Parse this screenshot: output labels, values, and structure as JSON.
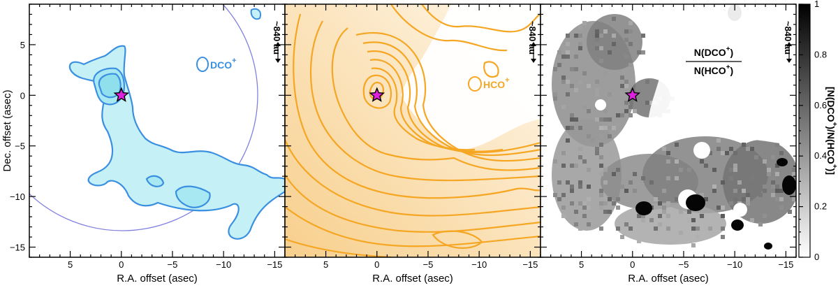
{
  "chart_data": [
    {
      "type": "contour",
      "panel": "left",
      "line_label": "DCO",
      "line_sup": "+",
      "xlabel": "R.A. offset (asec)",
      "ylabel": "Dec. offset (asec)",
      "xlim": [
        9,
        -16
      ],
      "ylim": [
        -16,
        9
      ],
      "x_ticks": [
        5,
        0,
        -5,
        -10,
        -15
      ],
      "y_ticks": [
        5,
        0,
        -5,
        -10,
        -15
      ],
      "scale_bar_label": "~840 au",
      "star_position": [
        0,
        0
      ],
      "colors": {
        "contour": "#3b8fe0",
        "fill": "#c4f0f6",
        "fill_dark": "#90e2ee",
        "beam_circle": "#8080e0",
        "star": "#dd22dd"
      }
    },
    {
      "type": "contour",
      "panel": "middle",
      "line_label": "HCO",
      "line_sup": "+",
      "xlabel": "R.A. offset (asec)",
      "xlim": [
        9,
        -16
      ],
      "ylim": [
        -16,
        9
      ],
      "x_ticks": [
        5,
        0,
        -5,
        -10,
        -15
      ],
      "scale_bar_label": "~840 au",
      "star_position": [
        0,
        0
      ],
      "colors": {
        "contour": "#f5a623",
        "fill": "#fbe3bd"
      }
    },
    {
      "type": "heatmap",
      "panel": "right",
      "ratio_num": "N(DCO",
      "ratio_den": "N(HCO",
      "ratio_sup": "+",
      "xlabel": "R.A. offset (asec)",
      "xlim": [
        9,
        -16
      ],
      "ylim": [
        -16,
        9
      ],
      "x_ticks": [
        5,
        0,
        -5,
        -10,
        -15
      ],
      "scale_bar_label": "~840 au",
      "star_position": [
        0,
        0
      ],
      "colorbar": {
        "label": "[N(DCO",
        "label_mid": ")/N(HCO",
        "label_end": ")]",
        "sup": "+",
        "range": [
          0,
          1
        ],
        "ticks": [
          "0",
          "0.2",
          "0.4",
          "0.6",
          "0.8",
          "1"
        ],
        "colormap": "gray_r"
      }
    }
  ]
}
